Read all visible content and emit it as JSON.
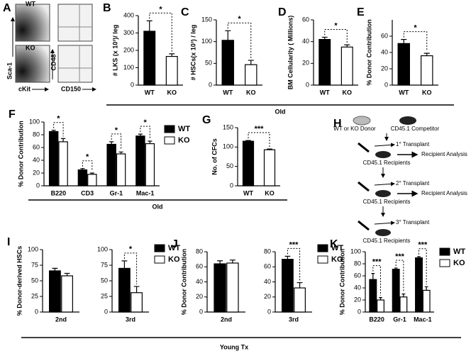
{
  "chart_data": [
    {
      "type": "bar",
      "panel": "B",
      "y_label": "# LKS (x 10³)/ leg",
      "categories": [
        "WT",
        "KO"
      ],
      "values": [
        310,
        165
      ],
      "errors": [
        60,
        15
      ],
      "colors": [
        "#000000",
        "#ffffff"
      ],
      "ylim": [
        0,
        400
      ],
      "yticks": [
        0,
        100,
        200,
        300,
        400
      ],
      "significance": "*"
    },
    {
      "type": "bar",
      "panel": "C",
      "y_label": "# HSCs(x 10³) / leg",
      "categories": [
        "WT",
        "KO"
      ],
      "values": [
        103,
        47
      ],
      "errors": [
        22,
        10
      ],
      "colors": [
        "#000000",
        "#ffffff"
      ],
      "ylim": [
        0,
        150
      ],
      "yticks": [
        0,
        50,
        100,
        150
      ],
      "significance": "*"
    },
    {
      "type": "bar",
      "panel": "D",
      "y_label": "BM Cellularity ( Millions)",
      "categories": [
        "WT",
        "KO"
      ],
      "values": [
        42,
        35
      ],
      "errors": [
        2,
        2
      ],
      "colors": [
        "#000000",
        "#ffffff"
      ],
      "ylim": [
        0,
        60
      ],
      "yticks": [
        0,
        20,
        40,
        60
      ],
      "significance": "*"
    },
    {
      "type": "bar",
      "panel": "E",
      "y_label": "% Donor Contribution",
      "categories": [
        "WT",
        "KO"
      ],
      "values": [
        51,
        36
      ],
      "errors": [
        5,
        3
      ],
      "colors": [
        "#000000",
        "#ffffff"
      ],
      "ylim": [
        0,
        80
      ],
      "yticks": [
        0,
        20,
        40,
        60
      ],
      "significance": "*"
    },
    {
      "type": "bar",
      "panel": "F",
      "y_label": "% Donor Contribution",
      "categories": [
        "B220",
        "CD3",
        "Gr-1",
        "Mac-1"
      ],
      "series": [
        {
          "name": "WT",
          "color": "#000000",
          "values": [
            85,
            25,
            65,
            78
          ],
          "errors": [
            2,
            2,
            4,
            3
          ]
        },
        {
          "name": "KO",
          "color": "#ffffff",
          "values": [
            69,
            18,
            50,
            66
          ],
          "errors": [
            5,
            2,
            3,
            4
          ]
        }
      ],
      "ylim": [
        0,
        100
      ],
      "yticks": [
        0,
        20,
        40,
        60,
        80,
        100
      ],
      "significance": [
        "*",
        "*",
        "*",
        "*"
      ],
      "legend": true
    },
    {
      "type": "bar",
      "panel": "G",
      "y_label": "No. of CFCs",
      "categories": [
        "WT",
        "KO"
      ],
      "values": [
        115,
        93
      ],
      "errors": [
        2,
        2
      ],
      "colors": [
        "#000000",
        "#ffffff"
      ],
      "ylim": [
        0,
        150
      ],
      "yticks": [
        0,
        50,
        100,
        150
      ],
      "significance": "***"
    },
    {
      "type": "bar",
      "panel": "I",
      "y_label": "% Donor-derived HSCs",
      "categories": [
        "2nd"
      ],
      "series": [
        {
          "name": "WT",
          "color": "#000000",
          "values": [
            66
          ],
          "errors": [
            4
          ]
        },
        {
          "name": "KO",
          "color": "#ffffff",
          "values": [
            58
          ],
          "errors": [
            4
          ]
        }
      ],
      "ylim": [
        0,
        100
      ],
      "yticks": [
        0,
        25,
        50,
        75,
        100
      ]
    },
    {
      "type": "bar",
      "categories": [
        "3rd"
      ],
      "series": [
        {
          "name": "WT",
          "color": "#000000",
          "values": [
            70
          ],
          "errors": [
            12
          ]
        },
        {
          "name": "KO",
          "color": "#ffffff",
          "values": [
            31
          ],
          "errors": [
            10
          ]
        }
      ],
      "ylim": [
        0,
        100
      ],
      "yticks": [
        0,
        25,
        50,
        75,
        100
      ],
      "significance": [
        "*"
      ],
      "legend": true
    },
    {
      "type": "bar",
      "panel": "J",
      "y_label": "% Donor Contribution",
      "categories": [
        "2nd"
      ],
      "series": [
        {
          "name": "WT",
          "color": "#000000",
          "values": [
            64
          ],
          "errors": [
            4
          ]
        },
        {
          "name": "KO",
          "color": "#ffffff",
          "values": [
            65
          ],
          "errors": [
            4
          ]
        }
      ],
      "ylim": [
        0,
        80
      ],
      "yticks": [
        0,
        20,
        40,
        60,
        80
      ]
    },
    {
      "type": "bar",
      "categories": [
        "3rd"
      ],
      "series": [
        {
          "name": "WT",
          "color": "#000000",
          "values": [
            70
          ],
          "errors": [
            4
          ]
        },
        {
          "name": "KO",
          "color": "#ffffff",
          "values": [
            32
          ],
          "errors": [
            7
          ]
        }
      ],
      "ylim": [
        0,
        80
      ],
      "yticks": [
        0,
        20,
        40,
        60,
        80
      ],
      "significance": [
        "***"
      ],
      "legend": true
    },
    {
      "type": "bar",
      "panel": "K",
      "y_label": "% Donor Contribution",
      "categories": [
        "B220",
        "Gr-1",
        "Mac-1"
      ],
      "series": [
        {
          "name": "WT",
          "color": "#000000",
          "values": [
            54,
            71,
            90
          ],
          "errors": [
            10,
            2,
            2
          ]
        },
        {
          "name": "KO",
          "color": "#ffffff",
          "values": [
            20,
            25,
            36
          ],
          "errors": [
            4,
            5,
            6
          ]
        }
      ],
      "ylim": [
        0,
        100
      ],
      "yticks": [
        0,
        20,
        40,
        60,
        80,
        100
      ],
      "significance": [
        "***",
        "***",
        "***"
      ],
      "legend": true
    }
  ],
  "flow_panel": {
    "label": "A",
    "rows": [
      "WT",
      "KO"
    ],
    "y_axis_left": "Sca-1",
    "x_axis_left": "cKit",
    "y_axis_right": "CD48",
    "x_axis_right": "CD150"
  },
  "schematic": {
    "label": "H",
    "donor": "WT or KO Donor",
    "competitor": "CD45.1 Competitor",
    "steps": [
      {
        "transplant": "1° Transplant",
        "recipients": "CD45.1 Recipients",
        "analysis": "Recipient Analysis"
      },
      {
        "transplant": "2° Transplant",
        "recipients": "CD45.1 Recipients",
        "analysis": "Recipient Analysis"
      },
      {
        "transplant": "3° Transplant",
        "recipients": "CD45.1 Recipients"
      }
    ]
  },
  "group_labels": [
    "Old",
    "Old",
    "Young Tx"
  ]
}
